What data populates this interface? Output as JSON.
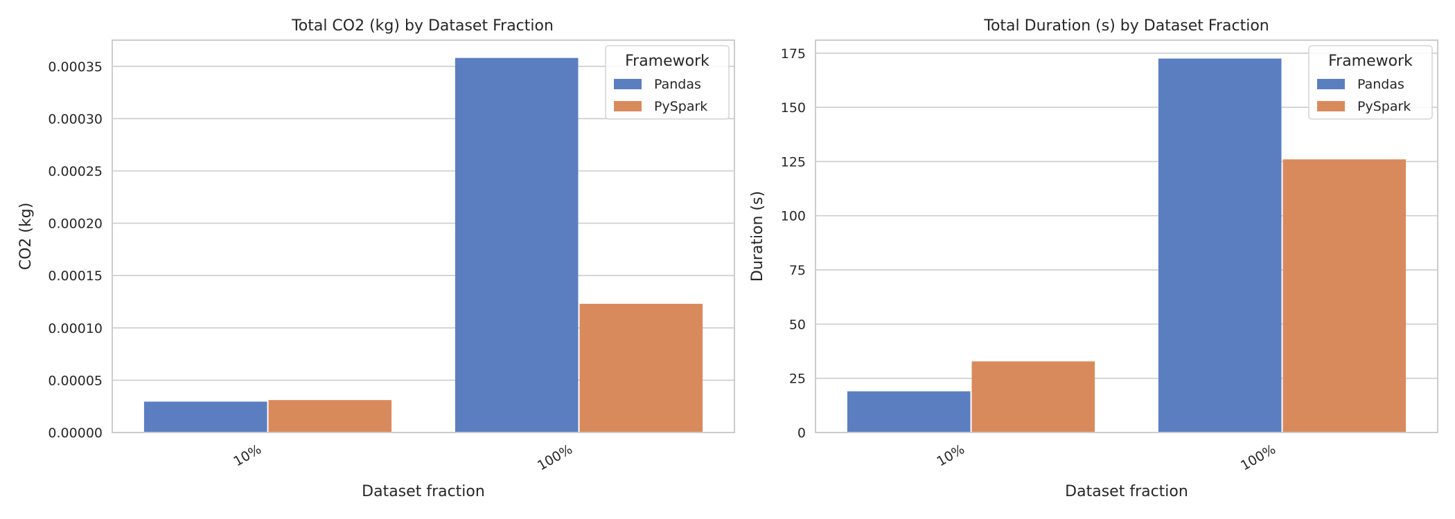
{
  "chart_data": [
    {
      "type": "bar",
      "title": "Total CO2 (kg) by Dataset Fraction",
      "xlabel": "Dataset fraction",
      "ylabel": "CO2 (kg)",
      "categories": [
        "10%",
        "100%"
      ],
      "series": [
        {
          "name": "Pandas",
          "values": [
            2.95e-05,
            0.000358
          ],
          "color": "#5b7ec1"
        },
        {
          "name": "PySpark",
          "values": [
            3.1e-05,
            0.000123
          ],
          "color": "#d98a5d"
        }
      ],
      "ylim": [
        0,
        0.000375
      ],
      "yticks": [
        0,
        5e-05,
        0.0001,
        0.00015,
        0.0002,
        0.00025,
        0.0003,
        0.00035
      ],
      "ytick_labels": [
        "0.00000",
        "0.00005",
        "0.00010",
        "0.00015",
        "0.00020",
        "0.00025",
        "0.00030",
        "0.00035"
      ],
      "grid": true,
      "legend": {
        "title": "Framework",
        "placement": "top-right"
      }
    },
    {
      "type": "bar",
      "title": "Total Duration (s) by Dataset Fraction",
      "xlabel": "Dataset fraction",
      "ylabel": "Duration (s)",
      "categories": [
        "10%",
        "100%"
      ],
      "series": [
        {
          "name": "Pandas",
          "values": [
            19.0,
            172.5
          ],
          "color": "#5b7ec1"
        },
        {
          "name": "PySpark",
          "values": [
            32.8,
            126.0
          ],
          "color": "#d98a5d"
        }
      ],
      "ylim": [
        0,
        181
      ],
      "yticks": [
        0,
        25,
        50,
        75,
        100,
        125,
        150,
        175
      ],
      "ytick_labels": [
        "0",
        "25",
        "50",
        "75",
        "100",
        "125",
        "150",
        "175"
      ],
      "grid": true,
      "legend": {
        "title": "Framework",
        "placement": "top-right"
      }
    }
  ]
}
